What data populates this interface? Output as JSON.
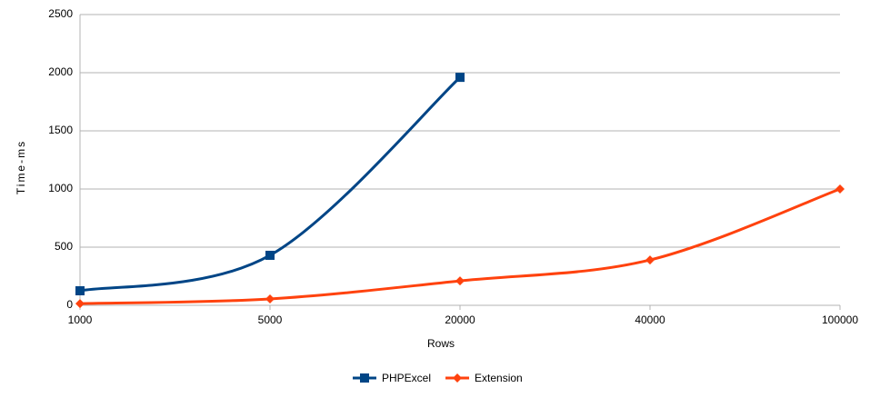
{
  "chart_data": {
    "type": "line",
    "smooth": true,
    "grid": true,
    "x_label": "Rows",
    "y_label": "Time-ms",
    "categories": [
      "1000",
      "5000",
      "20000",
      "40000",
      "100000"
    ],
    "series": [
      {
        "name": "PHPExcel",
        "color": "#004586",
        "marker": "square",
        "values": [
          125,
          430,
          1960,
          null,
          null
        ]
      },
      {
        "name": "Extension",
        "color": "#ff420e",
        "marker": "diamond",
        "values": [
          15,
          55,
          210,
          390,
          1000
        ]
      }
    ],
    "ylim": [
      0,
      2500
    ],
    "yticks": [
      0,
      500,
      1000,
      1500,
      2000,
      2500
    ]
  }
}
